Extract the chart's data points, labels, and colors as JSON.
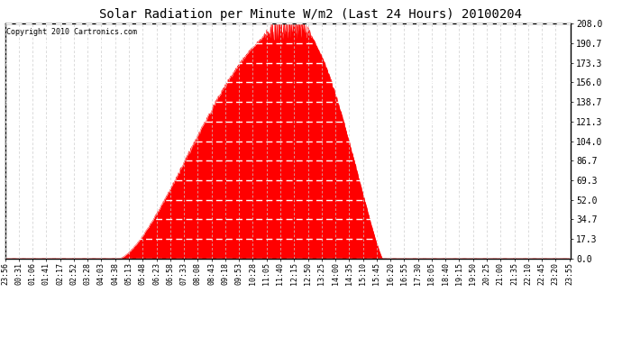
{
  "title": "Solar Radiation per Minute W/m2 (Last 24 Hours) 20100204",
  "copyright": "Copyright 2010 Cartronics.com",
  "fill_color": "#FF0000",
  "background_color": "#FFFFFF",
  "border_color": "#000000",
  "grid_color_major": "#FFFFFF",
  "grid_color_minor": "#CCCCCC",
  "dashed_line_color": "#FF0000",
  "yticks": [
    0.0,
    17.3,
    34.7,
    52.0,
    69.3,
    86.7,
    104.0,
    121.3,
    138.7,
    156.0,
    173.3,
    190.7,
    208.0
  ],
  "ymax": 208.0,
  "ymin": 0.0,
  "num_points": 1440,
  "peak_index": 735,
  "peak_value": 208.0,
  "rise_start": 290,
  "set_end": 960,
  "x_tick_indices": [
    0,
    35,
    70,
    105,
    140,
    175,
    210,
    245,
    280,
    315,
    350,
    385,
    420,
    455,
    490,
    525,
    560,
    595,
    630,
    665,
    700,
    735,
    770,
    805,
    840,
    875,
    910,
    945,
    980,
    1015,
    1050,
    1085,
    1120,
    1155,
    1190,
    1225,
    1260,
    1295,
    1330,
    1365,
    1400,
    1435
  ],
  "x_tick_labels": [
    "23:56",
    "00:31",
    "01:06",
    "01:41",
    "02:17",
    "02:52",
    "03:28",
    "04:03",
    "04:38",
    "05:13",
    "05:48",
    "06:23",
    "06:58",
    "07:33",
    "08:08",
    "08:43",
    "09:18",
    "09:53",
    "10:28",
    "11:05",
    "11:40",
    "12:15",
    "12:50",
    "13:25",
    "14:00",
    "14:35",
    "15:10",
    "15:45",
    "16:20",
    "16:55",
    "17:30",
    "18:05",
    "18:40",
    "19:15",
    "19:50",
    "20:25",
    "21:00",
    "21:35",
    "22:10",
    "22:45",
    "23:20",
    "23:55"
  ],
  "title_fontsize": 10,
  "copyright_fontsize": 6,
  "ytick_fontsize": 7,
  "xtick_fontsize": 6
}
